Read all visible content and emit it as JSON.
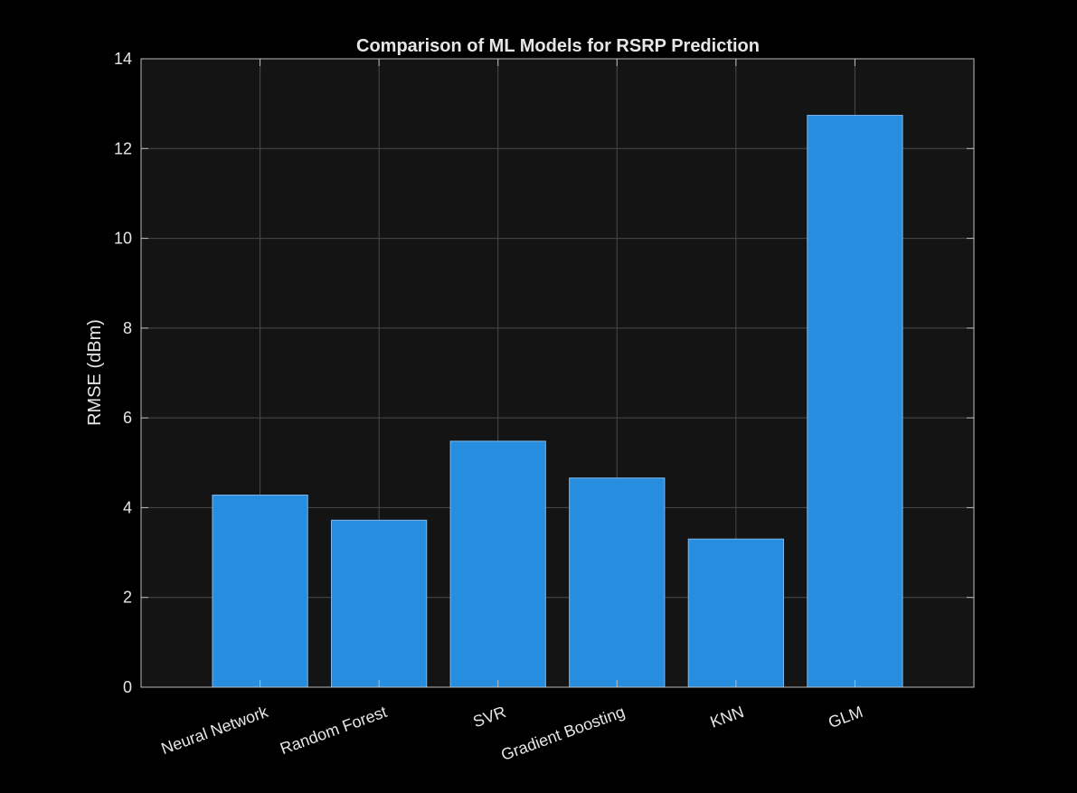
{
  "chart_data": {
    "type": "bar",
    "title": "Comparison of ML Models for RSRP Prediction",
    "xlabel": "",
    "ylabel": "RMSE (dBm)",
    "categories": [
      "Neural Network",
      "Random Forest",
      "SVR",
      "Gradient Boosting",
      "KNN",
      "GLM"
    ],
    "values": [
      4.28,
      3.72,
      5.48,
      4.66,
      3.3,
      12.74
    ],
    "ylim": [
      0,
      14
    ],
    "yticks": [
      "0",
      "2",
      "4",
      "6",
      "8",
      "10",
      "12",
      "14"
    ],
    "xlim": [
      0,
      7
    ],
    "grid": true,
    "colors": {
      "background": "#000000",
      "plot_area": "#141414",
      "bar_fill": "#268ddf",
      "bar_edge": "#7fb9ea",
      "grid": "#4a4a4a",
      "axes": "#bdbdbd",
      "text": "#e6e6e6"
    }
  }
}
